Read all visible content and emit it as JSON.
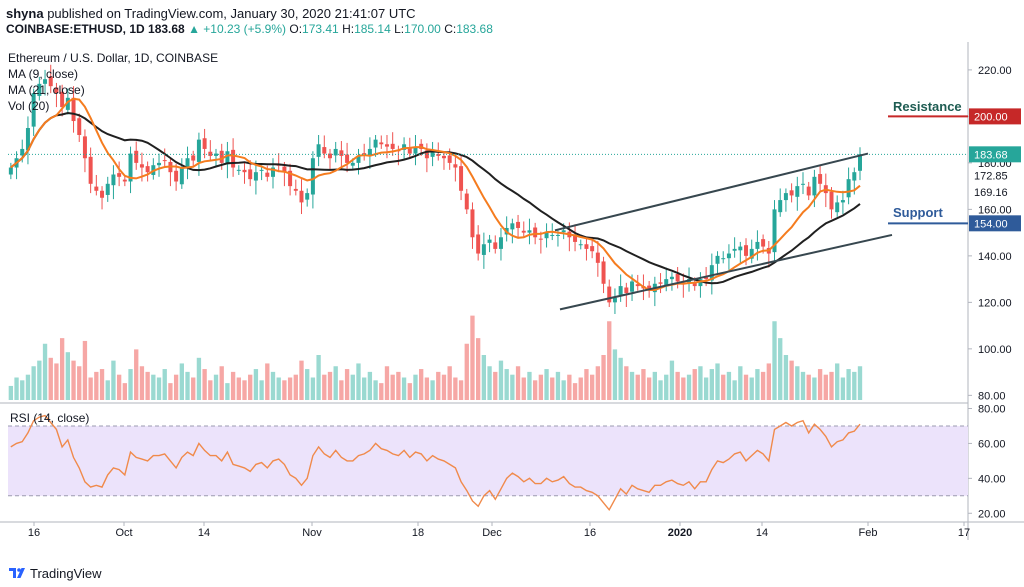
{
  "header": {
    "publisher": "shyna",
    "published_text": "published on TradingView.com, January 30, 2020 21:41:07 UTC",
    "symbol": "COINBASE:ETHUSD, 1D",
    "last": "183.68",
    "change": "▲ +10.23 (+5.9%)",
    "o_label": "O:",
    "o_value": "173.41",
    "h_label": "H:",
    "h_value": "185.14",
    "l_label": "L:",
    "l_value": "170.00",
    "c_label": "C:",
    "c_value": "183.68"
  },
  "pane": {
    "title": "Ethereum / U.S. Dollar, 1D, COINBASE",
    "ma9": "MA (9, close)",
    "ma21": "MA (21, close)",
    "vol": "Vol (20)",
    "rsi": "RSI (14, close)"
  },
  "annotations": {
    "resistance": "Resistance",
    "support": "Support"
  },
  "footer": {
    "brand": "TradingView"
  },
  "colors": {
    "up": "#26a69a",
    "down": "#ef5350",
    "ma9": "#f57c1f",
    "ma21": "#202020",
    "resistance": "#c62828",
    "support": "#2f5b9a",
    "trend": "#37474f",
    "rsi": "#f08a4b",
    "rsi_band": "#ece3fb"
  },
  "chart_data": [
    {
      "type": "candlestick",
      "title": "Ethereum / U.S. Dollar, 1D, COINBASE",
      "ylim": [
        78,
        232
      ],
      "y_ticks": [
        "220.00",
        "200.00",
        "180.00",
        "160.00",
        "140.00",
        "120.00",
        "100.00",
        "80.00"
      ],
      "x_ticks": [
        "16",
        "Oct",
        "14",
        "Nov",
        "18",
        "Dec",
        "16",
        "2020",
        "14",
        "Feb",
        "17"
      ],
      "price_labels": [
        {
          "text": "183.68",
          "value": 183.68,
          "kind": "last"
        },
        {
          "text": "172.85",
          "value": 172.85,
          "kind": "ma"
        },
        {
          "text": "169.16",
          "value": 169.16,
          "kind": "ma"
        },
        {
          "text": "200.00",
          "value": 200.0,
          "kind": "resistance"
        },
        {
          "text": "154.00",
          "value": 154.0,
          "kind": "support"
        }
      ],
      "resistance_level": 200.0,
      "support_level": 154.0,
      "close": [
        178.0,
        182.0,
        186.0,
        195.0,
        210.0,
        214.0,
        216.0,
        213.0,
        210.0,
        204.0,
        208.0,
        198.0,
        192.0,
        182.0,
        171.0,
        168.0,
        165.0,
        171.0,
        175.0,
        174.0,
        172.0,
        184.0,
        180.0,
        178.0,
        176.0,
        179.0,
        180.0,
        181.0,
        176.0,
        172.0,
        178.0,
        182.0,
        181.0,
        190.0,
        186.0,
        183.0,
        184.0,
        180.0,
        185.0,
        178.0,
        177.0,
        176.0,
        173.0,
        176.0,
        177.0,
        174.0,
        178.0,
        179.0,
        176.0,
        170.0,
        168.0,
        163.0,
        167.0,
        182.0,
        188.0,
        184.0,
        182.0,
        186.0,
        183.0,
        180.0,
        180.0,
        183.0,
        184.0,
        186.0,
        190.0,
        188.0,
        187.0,
        186.0,
        185.0,
        188.0,
        184.0,
        187.0,
        186.0,
        182.0,
        185.0,
        183.0,
        182.0,
        180.0,
        178.0,
        168.0,
        160.0,
        148.0,
        141.0,
        145.0,
        147.0,
        143.0,
        148.0,
        152.0,
        154.0,
        152.0,
        150.0,
        151.0,
        148.0,
        147.0,
        150.0,
        149.0,
        149.0,
        151.0,
        148.0,
        146.0,
        145.0,
        143.0,
        142.0,
        137.0,
        128.0,
        120.0,
        122.0,
        127.0,
        124.0,
        129.0,
        127.0,
        126.0,
        125.0,
        128.0,
        128.0,
        130.0,
        131.0,
        129.0,
        128.0,
        130.0,
        127.0,
        130.0,
        130.0,
        136.0,
        140.0,
        139.0,
        141.0,
        143.0,
        144.0,
        140.0,
        143.0,
        146.0,
        144.0,
        141.0,
        160.0,
        164.0,
        167.0,
        166.0,
        170.0,
        171.0,
        166.0,
        174.0,
        171.0,
        167.0,
        160.0,
        163.0,
        164.0,
        173.0,
        176.0,
        183.7
      ],
      "volume": [
        5,
        8,
        7,
        9,
        12,
        14,
        20,
        15,
        13,
        22,
        17,
        14,
        12,
        21,
        8,
        10,
        11,
        7,
        14,
        9,
        6,
        11,
        18,
        12,
        10,
        9,
        8,
        11,
        6,
        9,
        13,
        10,
        8,
        15,
        11,
        7,
        9,
        12,
        6,
        10,
        8,
        7,
        9,
        11,
        7,
        13,
        10,
        8,
        7,
        8,
        9,
        14,
        11,
        8,
        16,
        9,
        10,
        12,
        7,
        11,
        9,
        13,
        8,
        10,
        7,
        6,
        12,
        9,
        10,
        8,
        6,
        9,
        11,
        8,
        7,
        10,
        9,
        12,
        8,
        7,
        20,
        30,
        22,
        16,
        12,
        10,
        14,
        11,
        9,
        12,
        8,
        10,
        7,
        9,
        11,
        8,
        10,
        7,
        9,
        6,
        8,
        11,
        9,
        12,
        16,
        28,
        18,
        15,
        12,
        10,
        9,
        11,
        8,
        10,
        7,
        9,
        14,
        10,
        8,
        9,
        11,
        12,
        8,
        11,
        13,
        9,
        10,
        7,
        12,
        9,
        8,
        11,
        10,
        13,
        28,
        22,
        16,
        14,
        12,
        10,
        9,
        8,
        11,
        9,
        10,
        13,
        8,
        11,
        10,
        12
      ]
    },
    {
      "type": "line",
      "title": "RSI (14, close)",
      "ylim": [
        15,
        82
      ],
      "y_ticks": [
        "80.00",
        "60.00",
        "40.00",
        "20.00"
      ],
      "band": [
        30,
        70
      ],
      "values": [
        58,
        60,
        61,
        66,
        73,
        75,
        76,
        72,
        68,
        58,
        62,
        52,
        46,
        38,
        35,
        36,
        35,
        42,
        46,
        45,
        42,
        55,
        52,
        51,
        50,
        53,
        53,
        54,
        50,
        46,
        52,
        55,
        53,
        60,
        56,
        53,
        53,
        50,
        55,
        48,
        47,
        46,
        44,
        48,
        49,
        46,
        50,
        51,
        48,
        42,
        40,
        36,
        40,
        53,
        58,
        54,
        52,
        56,
        52,
        50,
        50,
        53,
        54,
        56,
        60,
        57,
        56,
        54,
        53,
        56,
        52,
        55,
        54,
        50,
        53,
        51,
        50,
        48,
        46,
        38,
        33,
        27,
        24,
        30,
        33,
        28,
        34,
        40,
        43,
        41,
        38,
        40,
        37,
        37,
        40,
        38,
        39,
        41,
        37,
        35,
        35,
        33,
        32,
        30,
        26,
        22,
        28,
        34,
        31,
        36,
        34,
        33,
        32,
        36,
        36,
        38,
        39,
        37,
        36,
        38,
        34,
        38,
        38,
        45,
        50,
        49,
        51,
        54,
        55,
        50,
        53,
        56,
        54,
        50,
        68,
        70,
        72,
        70,
        72,
        73,
        66,
        71,
        68,
        64,
        58,
        61,
        62,
        66,
        67,
        71
      ]
    }
  ]
}
